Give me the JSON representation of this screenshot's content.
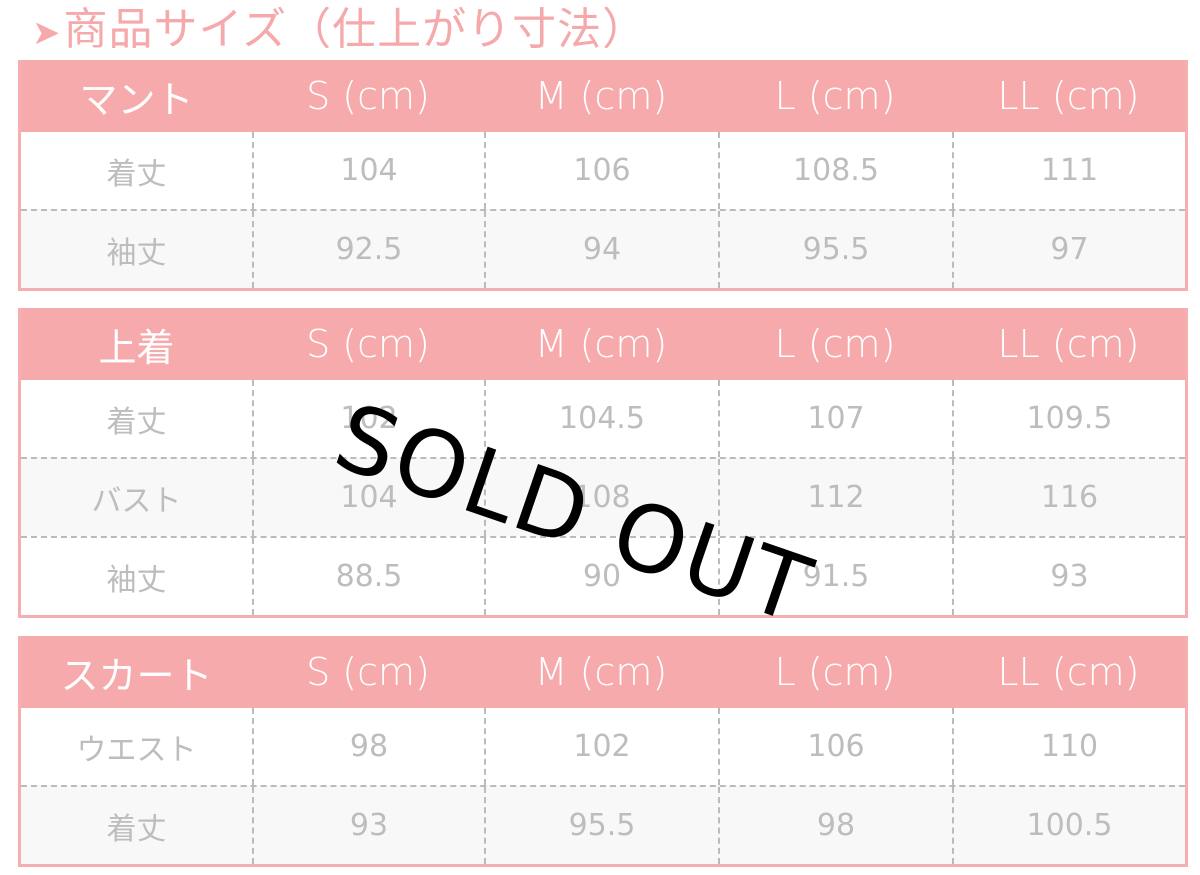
{
  "title": {
    "arrow": "➤",
    "text": "商品サイズ（仕上がり寸法）"
  },
  "colors": {
    "header": "#f6aaac",
    "title": "#f5a9ab",
    "value_text": "#bdbdbd",
    "stamp": "#000000"
  },
  "tables": [
    {
      "header": [
        "マント",
        "S (cm)",
        "M (cm)",
        "L (cm)",
        "LL (cm)"
      ],
      "rows": [
        [
          "着丈",
          "104",
          "106",
          "108.5",
          "111"
        ],
        [
          "袖丈",
          "92.5",
          "94",
          "95.5",
          "97"
        ]
      ]
    },
    {
      "header": [
        "上着",
        "S (cm)",
        "M (cm)",
        "L (cm)",
        "LL (cm)"
      ],
      "rows": [
        [
          "着丈",
          "102",
          "104.5",
          "107",
          "109.5"
        ],
        [
          "バスト",
          "104",
          "108",
          "112",
          "116"
        ],
        [
          "袖丈",
          "88.5",
          "90",
          "91.5",
          "93"
        ]
      ]
    },
    {
      "header": [
        "スカート",
        "S (cm)",
        "M (cm)",
        "L (cm)",
        "LL (cm)"
      ],
      "rows": [
        [
          "ウエスト",
          "98",
          "102",
          "106",
          "110"
        ],
        [
          "着丈",
          "93",
          "95.5",
          "98",
          "100.5"
        ]
      ]
    }
  ],
  "stamp": "SOLD OUT"
}
